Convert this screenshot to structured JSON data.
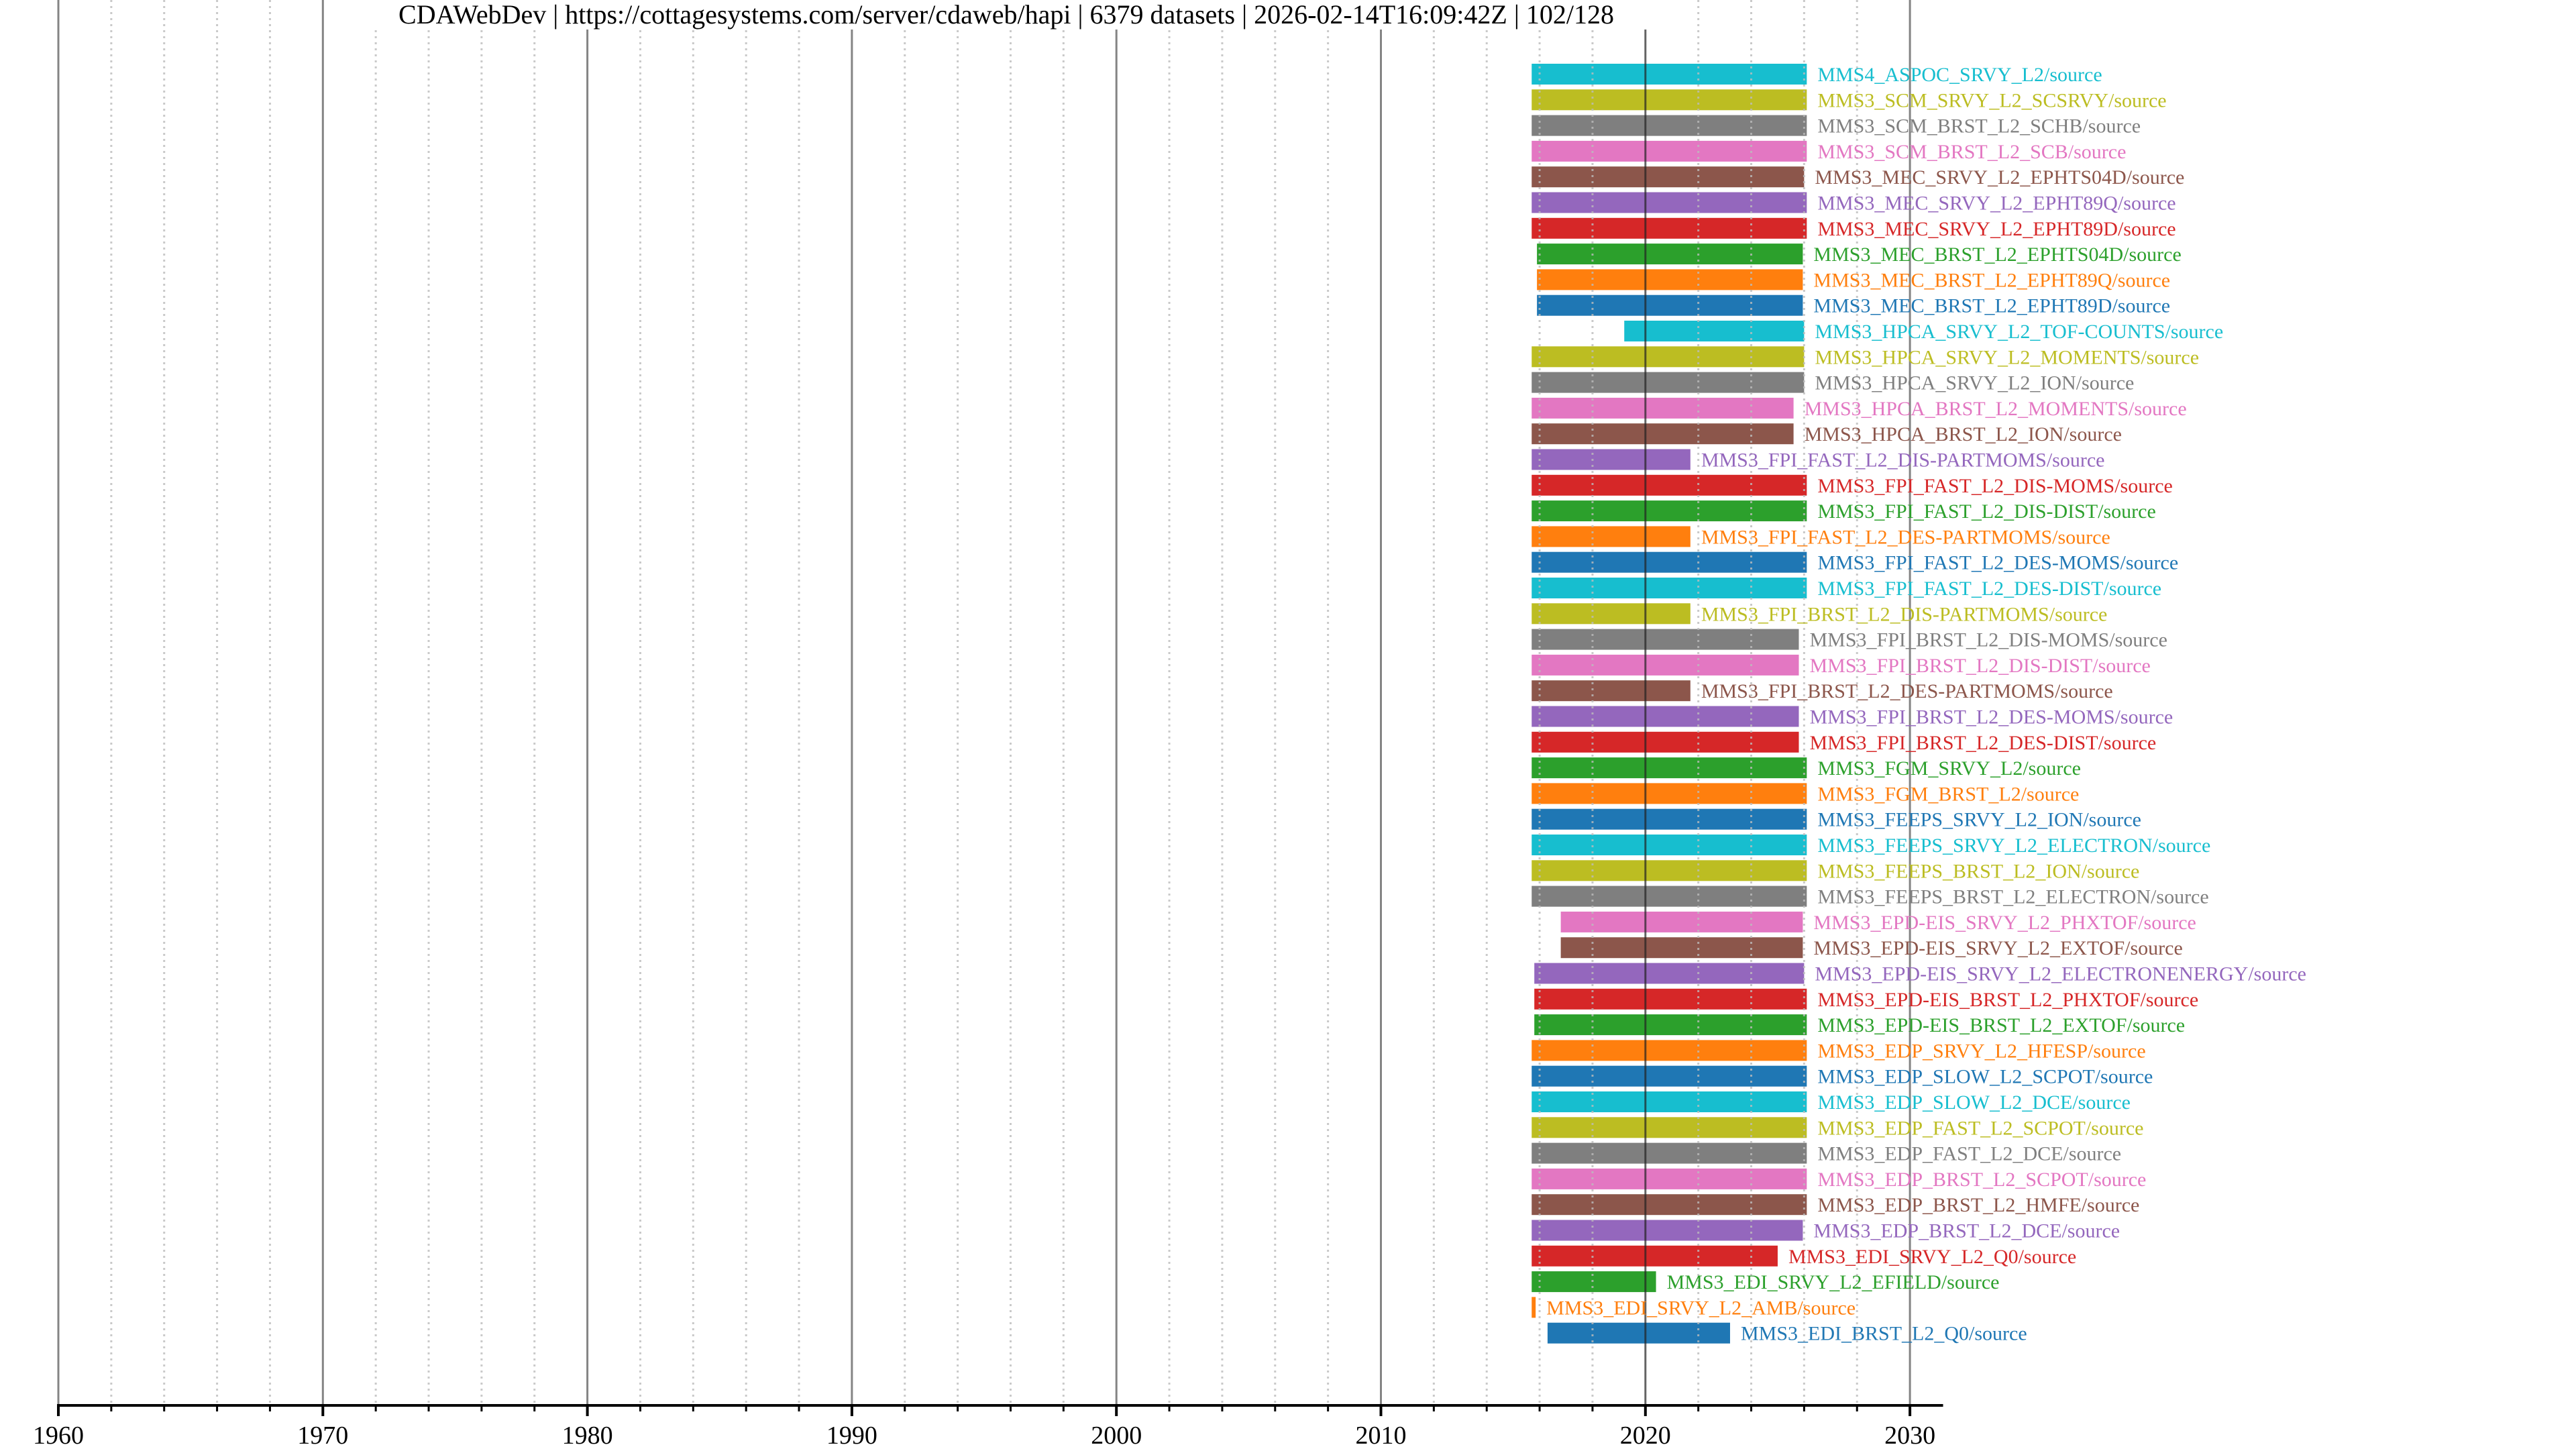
{
  "chart_data": {
    "type": "timeline",
    "title": "CDAWebDev | https://cottagesystems.com/server/cdaweb/hapi | 6379 datasets | 2026-02-14T16:09:42Z | 102/128",
    "xlabel": "",
    "ylabel": "",
    "xlim": [
      1960,
      2031
    ],
    "x_ticks": [
      1960,
      1970,
      1980,
      1990,
      2000,
      2010,
      2020,
      2030
    ],
    "x_tick_labels": [
      "1960",
      "1970",
      "1980",
      "1990",
      "2000",
      "2010",
      "2020",
      "2030"
    ],
    "minor_tick_step_years": 2,
    "grid": true,
    "colors": [
      "#17becf",
      "#bcbd22",
      "#7f7f7f",
      "#e377c2",
      "#8c564b",
      "#9467bd",
      "#d62728",
      "#2ca02c",
      "#ff7f0e",
      "#1f77b4"
    ],
    "series": [
      {
        "name": "MMS4_ASPOC_SRVY_L2/source",
        "start": 2015.7,
        "end": 2026.1
      },
      {
        "name": "MMS3_SCM_SRVY_L2_SCSRVY/source",
        "start": 2015.7,
        "end": 2026.1
      },
      {
        "name": "MMS3_SCM_BRST_L2_SCHB/source",
        "start": 2015.7,
        "end": 2026.1
      },
      {
        "name": "MMS3_SCM_BRST_L2_SCB/source",
        "start": 2015.7,
        "end": 2026.1
      },
      {
        "name": "MMS3_MEC_SRVY_L2_EPHTS04D/source",
        "start": 2015.7,
        "end": 2026.0
      },
      {
        "name": "MMS3_MEC_SRVY_L2_EPHT89Q/source",
        "start": 2015.7,
        "end": 2026.1
      },
      {
        "name": "MMS3_MEC_SRVY_L2_EPHT89D/source",
        "start": 2015.7,
        "end": 2026.1
      },
      {
        "name": "MMS3_MEC_BRST_L2_EPHTS04D/source",
        "start": 2015.9,
        "end": 2025.95
      },
      {
        "name": "MMS3_MEC_BRST_L2_EPHT89Q/source",
        "start": 2015.9,
        "end": 2025.95
      },
      {
        "name": "MMS3_MEC_BRST_L2_EPHT89D/source",
        "start": 2015.9,
        "end": 2025.95
      },
      {
        "name": "MMS3_HPCA_SRVY_L2_TOF-COUNTS/source",
        "start": 2019.2,
        "end": 2026.0
      },
      {
        "name": "MMS3_HPCA_SRVY_L2_MOMENTS/source",
        "start": 2015.7,
        "end": 2026.0
      },
      {
        "name": "MMS3_HPCA_SRVY_L2_ION/source",
        "start": 2015.7,
        "end": 2026.0
      },
      {
        "name": "MMS3_HPCA_BRST_L2_MOMENTS/source",
        "start": 2015.7,
        "end": 2025.6
      },
      {
        "name": "MMS3_HPCA_BRST_L2_ION/source",
        "start": 2015.7,
        "end": 2025.6
      },
      {
        "name": "MMS3_FPI_FAST_L2_DIS-PARTMOMS/source",
        "start": 2015.7,
        "end": 2021.7
      },
      {
        "name": "MMS3_FPI_FAST_L2_DIS-MOMS/source",
        "start": 2015.7,
        "end": 2026.1
      },
      {
        "name": "MMS3_FPI_FAST_L2_DIS-DIST/source",
        "start": 2015.7,
        "end": 2026.1
      },
      {
        "name": "MMS3_FPI_FAST_L2_DES-PARTMOMS/source",
        "start": 2015.7,
        "end": 2021.7
      },
      {
        "name": "MMS3_FPI_FAST_L2_DES-MOMS/source",
        "start": 2015.7,
        "end": 2026.1
      },
      {
        "name": "MMS3_FPI_FAST_L2_DES-DIST/source",
        "start": 2015.7,
        "end": 2026.1
      },
      {
        "name": "MMS3_FPI_BRST_L2_DIS-PARTMOMS/source",
        "start": 2015.7,
        "end": 2021.7
      },
      {
        "name": "MMS3_FPI_BRST_L2_DIS-MOMS/source",
        "start": 2015.7,
        "end": 2025.8
      },
      {
        "name": "MMS3_FPI_BRST_L2_DIS-DIST/source",
        "start": 2015.7,
        "end": 2025.8
      },
      {
        "name": "MMS3_FPI_BRST_L2_DES-PARTMOMS/source",
        "start": 2015.7,
        "end": 2021.7
      },
      {
        "name": "MMS3_FPI_BRST_L2_DES-MOMS/source",
        "start": 2015.7,
        "end": 2025.8
      },
      {
        "name": "MMS3_FPI_BRST_L2_DES-DIST/source",
        "start": 2015.7,
        "end": 2025.8
      },
      {
        "name": "MMS3_FGM_SRVY_L2/source",
        "start": 2015.7,
        "end": 2026.1
      },
      {
        "name": "MMS3_FGM_BRST_L2/source",
        "start": 2015.7,
        "end": 2026.1
      },
      {
        "name": "MMS3_FEEPS_SRVY_L2_ION/source",
        "start": 2015.7,
        "end": 2026.1
      },
      {
        "name": "MMS3_FEEPS_SRVY_L2_ELECTRON/source",
        "start": 2015.7,
        "end": 2026.1
      },
      {
        "name": "MMS3_FEEPS_BRST_L2_ION/source",
        "start": 2015.7,
        "end": 2026.1
      },
      {
        "name": "MMS3_FEEPS_BRST_L2_ELECTRON/source",
        "start": 2015.7,
        "end": 2026.1
      },
      {
        "name": "MMS3_EPD-EIS_SRVY_L2_PHXTOF/source",
        "start": 2016.8,
        "end": 2025.95
      },
      {
        "name": "MMS3_EPD-EIS_SRVY_L2_EXTOF/source",
        "start": 2016.8,
        "end": 2025.95
      },
      {
        "name": "MMS3_EPD-EIS_SRVY_L2_ELECTRONENERGY/source",
        "start": 2015.8,
        "end": 2026.0
      },
      {
        "name": "MMS3_EPD-EIS_BRST_L2_PHXTOF/source",
        "start": 2015.8,
        "end": 2026.1
      },
      {
        "name": "MMS3_EPD-EIS_BRST_L2_EXTOF/source",
        "start": 2015.8,
        "end": 2026.1
      },
      {
        "name": "MMS3_EDP_SRVY_L2_HFESP/source",
        "start": 2015.7,
        "end": 2026.1
      },
      {
        "name": "MMS3_EDP_SLOW_L2_SCPOT/source",
        "start": 2015.7,
        "end": 2026.1
      },
      {
        "name": "MMS3_EDP_SLOW_L2_DCE/source",
        "start": 2015.7,
        "end": 2026.1
      },
      {
        "name": "MMS3_EDP_FAST_L2_SCPOT/source",
        "start": 2015.7,
        "end": 2026.1
      },
      {
        "name": "MMS3_EDP_FAST_L2_DCE/source",
        "start": 2015.7,
        "end": 2026.1
      },
      {
        "name": "MMS3_EDP_BRST_L2_SCPOT/source",
        "start": 2015.7,
        "end": 2026.1
      },
      {
        "name": "MMS3_EDP_BRST_L2_HMFE/source",
        "start": 2015.7,
        "end": 2026.1
      },
      {
        "name": "MMS3_EDP_BRST_L2_DCE/source",
        "start": 2015.7,
        "end": 2025.95
      },
      {
        "name": "MMS3_EDI_SRVY_L2_Q0/source",
        "start": 2015.7,
        "end": 2025.0
      },
      {
        "name": "MMS3_EDI_SRVY_L2_EFIELD/source",
        "start": 2015.7,
        "end": 2020.4
      },
      {
        "name": "MMS3_EDI_SRVY_L2_AMB/source",
        "start": 2015.7,
        "end": 2015.85
      },
      {
        "name": "MMS3_EDI_BRST_L2_Q0/source",
        "start": 2016.3,
        "end": 2023.2
      }
    ]
  }
}
